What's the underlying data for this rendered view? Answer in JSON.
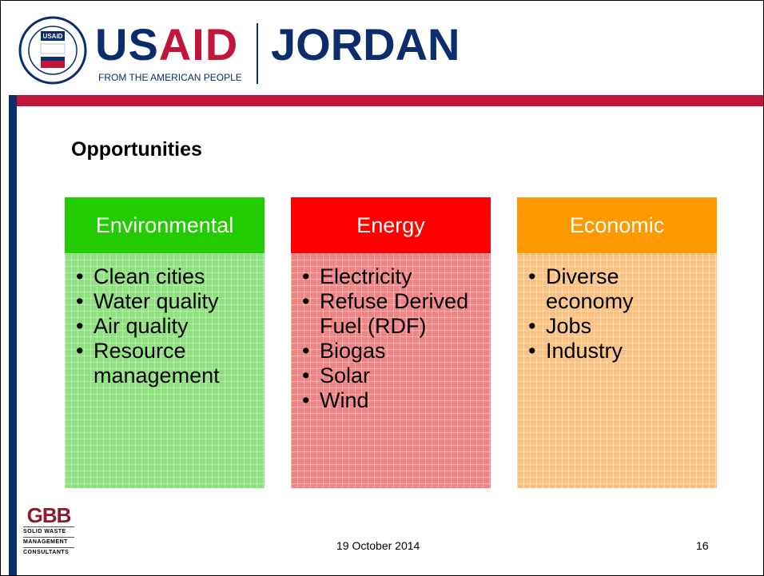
{
  "header": {
    "seal": "USAID",
    "brand_left": "US",
    "brand_right": "AID",
    "tagline": "FROM THE AMERICAN PEOPLE",
    "country": "JORDAN"
  },
  "title": "Opportunities",
  "columns": [
    {
      "heading": "Environmental",
      "items": [
        "Clean cities",
        "Water quality",
        "Air quality",
        "Resource management"
      ]
    },
    {
      "heading": "Energy",
      "items": [
        "Electricity",
        "Refuse Derived Fuel (RDF)",
        "Biogas",
        "Solar",
        "Wind"
      ]
    },
    {
      "heading": "Economic",
      "items": [
        "Diverse economy",
        "Jobs",
        "Industry"
      ]
    }
  ],
  "footer": {
    "logo": "GBB",
    "logo_lines": [
      "SOLID WASTE",
      "MANAGEMENT",
      "CONSULTANTS"
    ],
    "date": "19 October 2014",
    "page": "16"
  }
}
